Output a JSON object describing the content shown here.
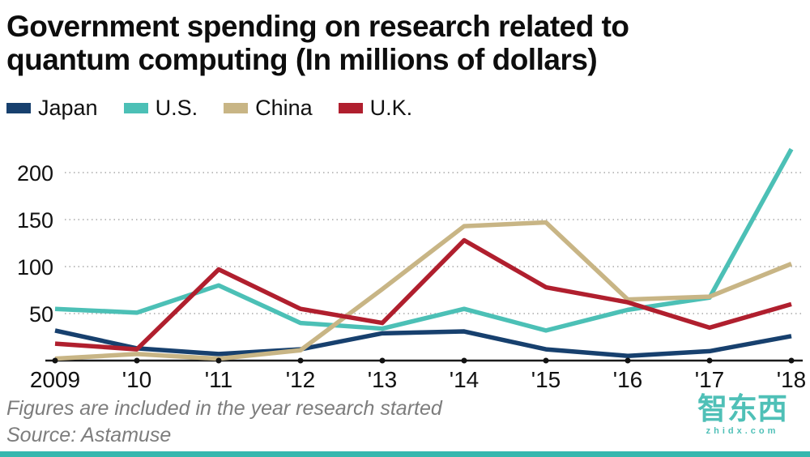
{
  "title_line1": "Government spending on research related to",
  "title_line2": "quantum computing (In millions of dollars)",
  "footnote": "Figures are included in the year research started",
  "source": "Source: Astamuse",
  "watermark": {
    "name": "智东西",
    "domain": "zhidx.com"
  },
  "accent_color": "#35b7ae",
  "chart_data": {
    "type": "line",
    "title": "Government spending on research related to quantum computing (In millions of dollars)",
    "x_labels": [
      "2009",
      "'10",
      "'11",
      "'12",
      "'13",
      "'14",
      "'15",
      "'16",
      "'17",
      "'18"
    ],
    "yticks": [
      50,
      100,
      150,
      200
    ],
    "ylim": [
      0,
      240
    ],
    "grid": "dotted-horizontal",
    "legend_position": "top-left",
    "series": [
      {
        "name": "Japan",
        "color": "#17406e",
        "values": [
          32,
          13,
          7,
          12,
          29,
          31,
          12,
          5,
          10,
          26
        ]
      },
      {
        "name": "U.S.",
        "color": "#4cc0b6",
        "values": [
          55,
          51,
          80,
          40,
          34,
          55,
          32,
          54,
          67,
          225
        ]
      },
      {
        "name": "China",
        "color": "#c8b585",
        "values": [
          2,
          7,
          2,
          11,
          76,
          143,
          147,
          65,
          68,
          103
        ]
      },
      {
        "name": "U.K.",
        "color": "#b01f2e",
        "values": [
          18,
          12,
          97,
          55,
          40,
          128,
          78,
          62,
          35,
          60
        ]
      }
    ]
  }
}
